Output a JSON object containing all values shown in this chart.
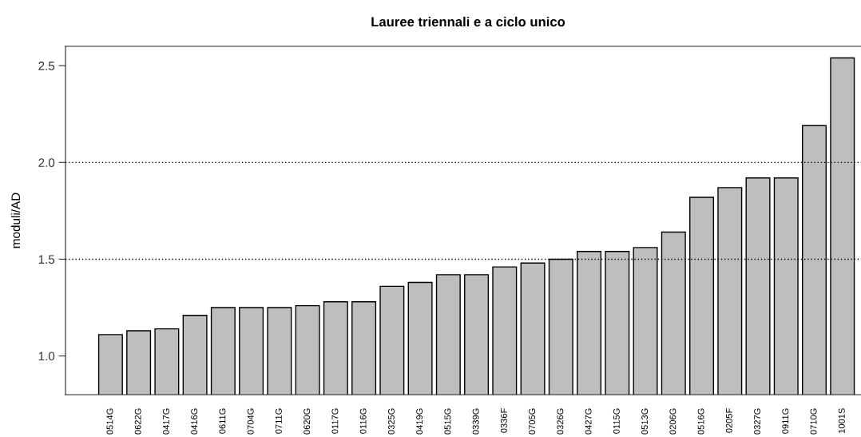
{
  "chart_data": {
    "type": "bar",
    "title": "Lauree triennali e a ciclo unico",
    "ylabel": "moduli/AD",
    "categories": [
      "0514G",
      "0622G",
      "0417G",
      "0416G",
      "0611G",
      "0704G",
      "0711G",
      "0620G",
      "0117G",
      "0116G",
      "0325G",
      "0419G",
      "0515G",
      "0339G",
      "0336F",
      "0705G",
      "0326G",
      "0427G",
      "0115G",
      "0513G",
      "0206G",
      "0516G",
      "0205F",
      "0327G",
      "0911G",
      "0710G",
      "1001S"
    ],
    "values": [
      1.11,
      1.13,
      1.14,
      1.21,
      1.25,
      1.25,
      1.25,
      1.26,
      1.28,
      1.28,
      1.36,
      1.38,
      1.42,
      1.42,
      1.46,
      1.48,
      1.5,
      1.54,
      1.54,
      1.56,
      1.64,
      1.82,
      1.87,
      1.92,
      1.92,
      2.19,
      2.54
    ],
    "color": "#bebebe",
    "ylim": [
      0.8,
      2.6
    ],
    "yticks": [
      {
        "value": 1.0,
        "label": "1.0"
      },
      {
        "value": 1.5,
        "label": "1.5"
      },
      {
        "value": 2.0,
        "label": "2.0"
      },
      {
        "value": 2.5,
        "label": "2.5"
      }
    ],
    "ref_lines": [
      {
        "axis": "y",
        "value": 1.5,
        "line_style": "dotted",
        "color": "#000000"
      },
      {
        "axis": "y",
        "value": 2.0,
        "line_style": "dotted",
        "color": "#000000"
      }
    ],
    "grid": false,
    "legend": false
  }
}
